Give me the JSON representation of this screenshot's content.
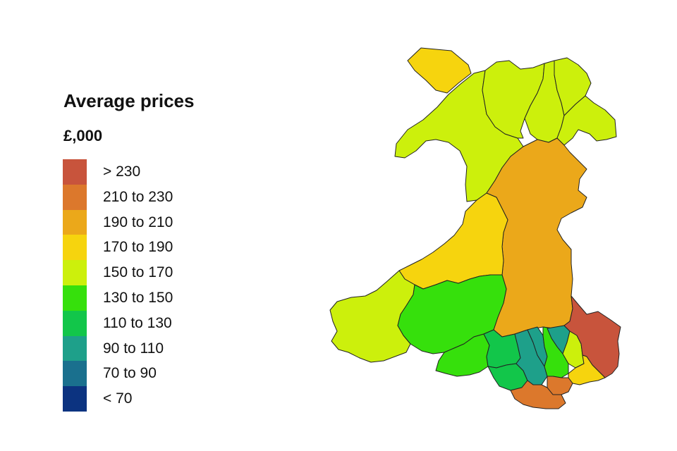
{
  "legend": {
    "title": "Average prices",
    "unit": "£,000",
    "bins": [
      {
        "label": "> 230",
        "color": "#c8543c"
      },
      {
        "label": "210 to 230",
        "color": "#dc782c"
      },
      {
        "label": "190 to 210",
        "color": "#eba81a"
      },
      {
        "label": "170 to 190",
        "color": "#f6d40e"
      },
      {
        "label": "150 to 170",
        "color": "#ccf00c"
      },
      {
        "label": "130 to 150",
        "color": "#36e00c"
      },
      {
        "label": "110 to 130",
        "color": "#12c64a"
      },
      {
        "label": "90 to 110",
        "color": "#1ea08a"
      },
      {
        "label": "70 to 90",
        "color": "#1a708e"
      },
      {
        "label": "< 70",
        "color": "#0c3380"
      }
    ]
  },
  "map_regions": [
    {
      "id": "anglesey",
      "bin": "170 to 190"
    },
    {
      "id": "gwynedd",
      "bin": "150 to 170"
    },
    {
      "id": "conwy",
      "bin": "150 to 170"
    },
    {
      "id": "denbighshire",
      "bin": "150 to 170"
    },
    {
      "id": "flintshire",
      "bin": "150 to 170"
    },
    {
      "id": "wrexham",
      "bin": "150 to 170"
    },
    {
      "id": "powys",
      "bin": "190 to 210"
    },
    {
      "id": "ceredigion",
      "bin": "170 to 190"
    },
    {
      "id": "pembrokeshire",
      "bin": "150 to 170"
    },
    {
      "id": "carmarthenshire",
      "bin": "130 to 150"
    },
    {
      "id": "swansea",
      "bin": "130 to 150"
    },
    {
      "id": "neath-port-talbot",
      "bin": "110 to 130"
    },
    {
      "id": "bridgend",
      "bin": "110 to 130"
    },
    {
      "id": "rhondda-cynon-taf",
      "bin": "90 to 110"
    },
    {
      "id": "merthyr-tydfil",
      "bin": "90 to 110"
    },
    {
      "id": "caerphilly",
      "bin": "130 to 150"
    },
    {
      "id": "blaenau-gwent",
      "bin": "90 to 110"
    },
    {
      "id": "torfaen",
      "bin": "150 to 170"
    },
    {
      "id": "newport",
      "bin": "170 to 190"
    },
    {
      "id": "monmouthshire",
      "bin": "> 230"
    },
    {
      "id": "cardiff",
      "bin": "210 to 230"
    },
    {
      "id": "vale-of-glamorgan",
      "bin": "210 to 230"
    }
  ]
}
